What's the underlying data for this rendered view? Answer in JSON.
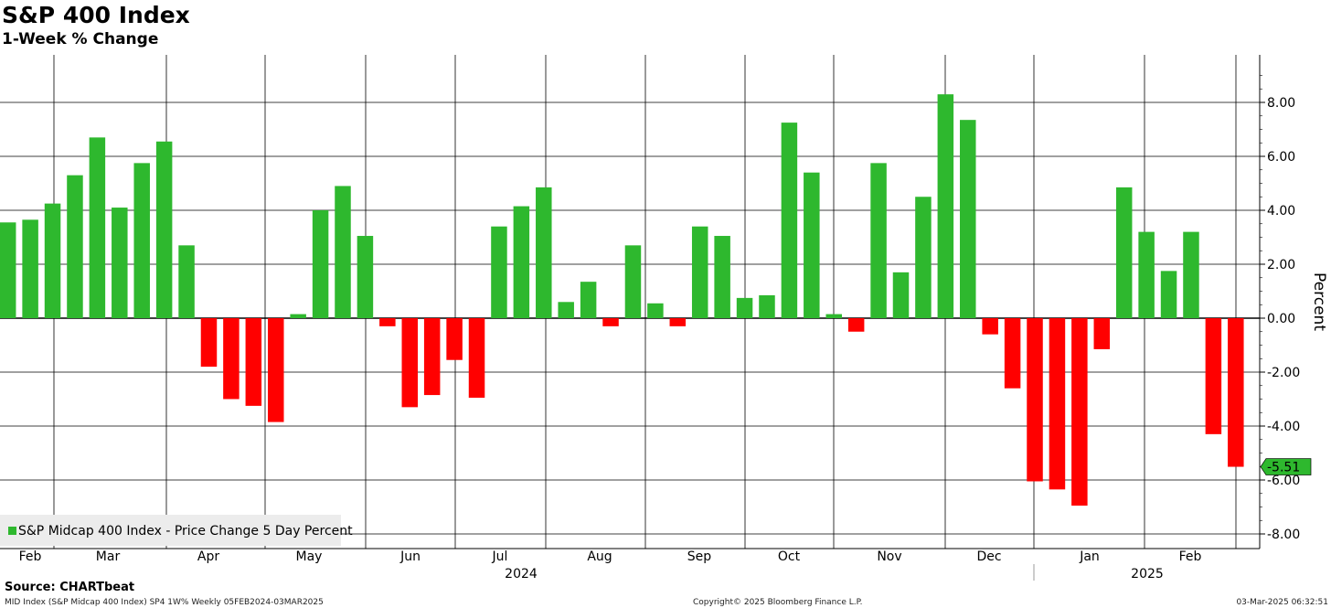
{
  "header": {
    "title": "S&P 400 Index",
    "subtitle": "1-Week % Change"
  },
  "footer": {
    "source": "Source: CHARTbeat",
    "descriptor": "MID Index (S&P Midcap 400 Index) SP4 1W% Weekly 05FEB2024-03MAR2025",
    "copyright": "Copyright© 2025 Bloomberg Finance L.P.",
    "timestamp": "03-Mar-2025 06:32:51"
  },
  "colors": {
    "positive": "#2eb82e",
    "negative": "#ff0000",
    "grid": "#000000",
    "legend_bg": "#ececec"
  },
  "chart_data": {
    "type": "bar",
    "series": [
      {
        "name": "S&P Midcap 400 Index - Price Change 5 Day Percent",
        "values": [
          3.55,
          3.65,
          4.25,
          5.3,
          6.7,
          4.1,
          5.75,
          6.55,
          2.7,
          -1.8,
          -3.0,
          -3.25,
          -3.85,
          0.15,
          4.0,
          4.9,
          3.05,
          -0.3,
          -3.3,
          -2.85,
          -1.55,
          -2.95,
          3.4,
          4.15,
          4.85,
          0.6,
          1.35,
          -0.3,
          2.7,
          0.55,
          -0.3,
          3.4,
          3.05,
          0.75,
          0.85,
          7.25,
          5.4,
          0.15,
          -0.5,
          5.75,
          1.7,
          4.5,
          8.3,
          7.35,
          -0.6,
          -2.6,
          -6.05,
          -6.35,
          -6.95,
          -1.15,
          4.85,
          3.2,
          1.75,
          3.2,
          -4.3,
          -5.51
        ]
      }
    ],
    "last_value_label": "-5.51",
    "y_axis": {
      "label": "Percent",
      "ylim": [
        -8.5,
        9.5
      ],
      "ticks": [
        8.0,
        6.0,
        4.0,
        2.0,
        0.0,
        -2.0,
        -4.0,
        -6.0,
        -8.0
      ],
      "tick_labels": [
        "8.00",
        "6.00",
        "4.00",
        "2.00",
        "0.00",
        "-2.00",
        "-4.00",
        "-6.00",
        "-8.00"
      ]
    },
    "x_axis": {
      "months": [
        "Feb",
        "Mar",
        "Apr",
        "May",
        "Jun",
        "Jul",
        "Aug",
        "Sep",
        "Oct",
        "Nov",
        "Dec",
        "Jan",
        "Feb"
      ],
      "years": [
        "2024",
        "2025"
      ]
    },
    "grid": true,
    "legend_position": "bottom-left"
  }
}
